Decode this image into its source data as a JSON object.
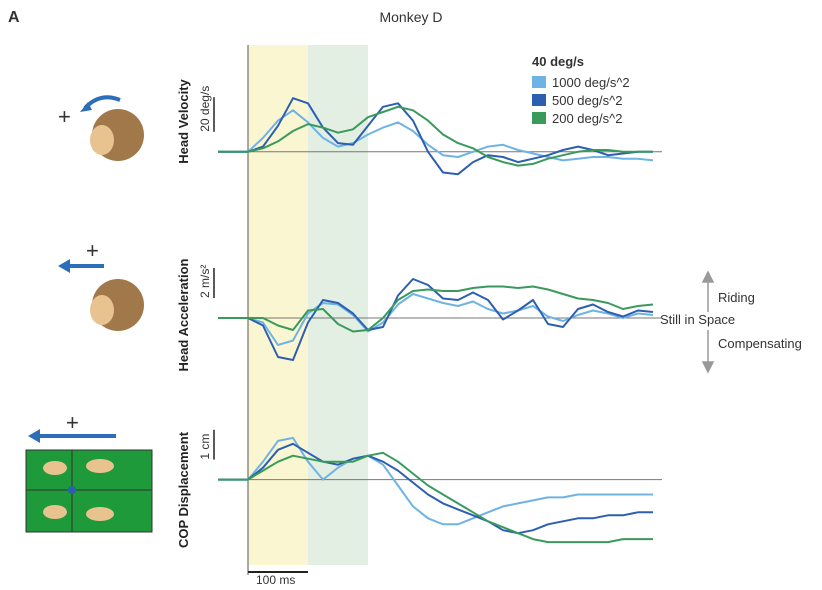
{
  "panel_label": "A",
  "title": "Monkey D",
  "legend_title": "40 deg/s",
  "time_windows": [
    {
      "start": 0,
      "end": 100,
      "color": "#fbf6d2"
    },
    {
      "start": 100,
      "end": 200,
      "color": "#e2efe2"
    }
  ],
  "time_scale_bar": {
    "value": 100,
    "label": "100 ms"
  },
  "annotations": {
    "up": "Riding",
    "middle": "Still in Space",
    "down": "Compensating"
  },
  "icons": [
    "+",
    "+",
    "+"
  ],
  "chart_data": [
    {
      "type": "line",
      "ylabel": "Head Velocity",
      "scale_bar": {
        "value": 20,
        "label": "20 deg/s"
      },
      "xlim": [
        -55,
        690
      ],
      "ylim": [
        -25,
        60
      ],
      "x": [
        -50,
        -25,
        0,
        25,
        50,
        75,
        100,
        125,
        150,
        175,
        200,
        225,
        250,
        275,
        300,
        325,
        350,
        375,
        400,
        425,
        450,
        475,
        500,
        525,
        550,
        575,
        600,
        625,
        650,
        675
      ],
      "series": [
        {
          "name": "1000 deg/s^2",
          "color": "#6fb3e4",
          "values": [
            0,
            0,
            0,
            8,
            18,
            24,
            17,
            8,
            3,
            5,
            10,
            14,
            17,
            12,
            4,
            -2,
            -3,
            0,
            3,
            4,
            1,
            -1,
            -3,
            -5,
            -4,
            -3,
            -3,
            -4,
            -4,
            -5
          ]
        },
        {
          "name": "500 deg/s^2",
          "color": "#2c5fb0",
          "values": [
            0,
            0,
            0,
            3,
            15,
            31,
            28,
            14,
            5,
            4,
            15,
            26,
            28,
            18,
            0,
            -12,
            -13,
            -6,
            -2,
            -3,
            -6,
            -4,
            -2,
            1,
            3,
            1,
            -2,
            -1,
            0,
            0
          ]
        },
        {
          "name": "200 deg/s^2",
          "color": "#3a9a5c",
          "values": [
            0,
            0,
            0,
            2,
            6,
            12,
            16,
            14,
            11,
            13,
            20,
            23,
            26,
            24,
            18,
            10,
            5,
            2,
            -3,
            -6,
            -8,
            -7,
            -4,
            -2,
            0,
            1,
            1,
            0,
            0,
            0
          ]
        }
      ]
    },
    {
      "type": "line",
      "ylabel": "Head Acceleration",
      "scale_bar": {
        "value": 2,
        "label": "2 m/s²"
      },
      "xlim": [
        -55,
        690
      ],
      "ylim": [
        -4,
        4.4
      ],
      "x": [
        -50,
        -25,
        0,
        25,
        50,
        75,
        100,
        125,
        150,
        175,
        200,
        225,
        250,
        275,
        300,
        325,
        350,
        375,
        400,
        425,
        450,
        475,
        500,
        525,
        550,
        575,
        600,
        625,
        650,
        675
      ],
      "series": [
        {
          "name": "1000 deg/s^2",
          "color": "#6fb3e4",
          "values": [
            0,
            0,
            0,
            -0.3,
            -1.8,
            -1.5,
            0.3,
            1.0,
            0.9,
            0.2,
            -0.9,
            -0.3,
            0.9,
            1.6,
            1.3,
            1.0,
            0.8,
            1.1,
            0.6,
            0.3,
            0.5,
            0.8,
            0.1,
            -0.2,
            0.2,
            0.5,
            0.3,
            0.0,
            0.3,
            0.2
          ]
        },
        {
          "name": "500 deg/s^2",
          "color": "#2c5fb0",
          "values": [
            0,
            0,
            0,
            -0.5,
            -2.6,
            -2.8,
            -0.3,
            1.2,
            1.0,
            0.3,
            -0.8,
            -0.6,
            1.5,
            2.6,
            2.2,
            1.3,
            1.2,
            1.7,
            1.2,
            -0.1,
            0.5,
            1.2,
            -0.4,
            -0.6,
            0.6,
            0.9,
            0.4,
            0.1,
            0.5,
            0.4
          ]
        },
        {
          "name": "200 deg/s^2",
          "color": "#3a9a5c",
          "values": [
            0,
            0,
            0,
            0,
            -0.5,
            -0.8,
            0.5,
            0.6,
            -0.4,
            -0.9,
            -0.8,
            0,
            1.2,
            1.8,
            1.9,
            1.8,
            1.8,
            2.0,
            2.1,
            2.1,
            2.0,
            2.1,
            1.9,
            1.6,
            1.3,
            1.2,
            1.0,
            0.6,
            0.8,
            0.9
          ]
        }
      ]
    },
    {
      "type": "line",
      "ylabel": "COP Displacement",
      "scale_bar": {
        "value": 1,
        "label": "1 cm"
      },
      "xlim": [
        -55,
        690
      ],
      "ylim": [
        -2.7,
        2
      ],
      "x": [
        -50,
        -25,
        0,
        25,
        50,
        75,
        100,
        125,
        150,
        175,
        200,
        225,
        250,
        275,
        300,
        325,
        350,
        375,
        400,
        425,
        450,
        475,
        500,
        525,
        550,
        575,
        600,
        625,
        650,
        675
      ],
      "series": [
        {
          "name": "1000 deg/s^2",
          "color": "#6fb3e4",
          "values": [
            0,
            0,
            0,
            0.6,
            1.3,
            1.4,
            0.6,
            0.0,
            0.4,
            0.7,
            0.8,
            0.5,
            -0.2,
            -0.9,
            -1.3,
            -1.5,
            -1.5,
            -1.3,
            -1.1,
            -0.9,
            -0.8,
            -0.7,
            -0.6,
            -0.6,
            -0.5,
            -0.5,
            -0.5,
            -0.5,
            -0.5,
            -0.5
          ]
        },
        {
          "name": "500 deg/s^2",
          "color": "#2c5fb0",
          "values": [
            0,
            0,
            0,
            0.4,
            1.0,
            1.2,
            0.9,
            0.6,
            0.5,
            0.7,
            0.8,
            0.6,
            0.3,
            -0.1,
            -0.5,
            -0.8,
            -1.0,
            -1.2,
            -1.4,
            -1.7,
            -1.8,
            -1.7,
            -1.5,
            -1.4,
            -1.3,
            -1.3,
            -1.2,
            -1.2,
            -1.1,
            -1.1
          ]
        },
        {
          "name": "200 deg/s^2",
          "color": "#3a9a5c",
          "values": [
            0,
            0,
            0,
            0.3,
            0.6,
            0.8,
            0.7,
            0.6,
            0.6,
            0.6,
            0.8,
            0.9,
            0.6,
            0.2,
            -0.2,
            -0.5,
            -0.8,
            -1.1,
            -1.4,
            -1.6,
            -1.8,
            -2.0,
            -2.1,
            -2.1,
            -2.1,
            -2.1,
            -2.1,
            -2.0,
            -2.0,
            -2.0
          ]
        }
      ]
    }
  ]
}
